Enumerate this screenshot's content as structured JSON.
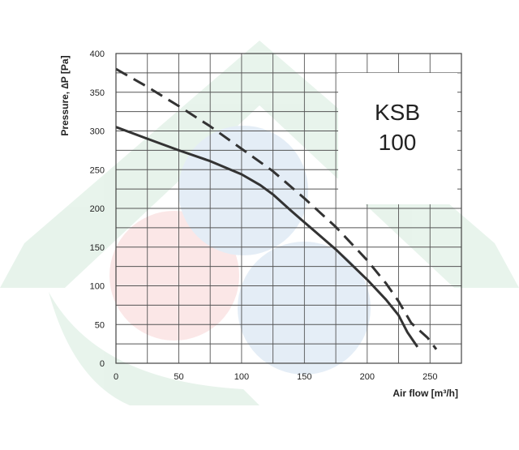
{
  "chart_data": {
    "type": "line",
    "title": "",
    "xlabel": "Air flow [m³/h]",
    "ylabel": "Pressure, ∆P [Pa]",
    "xlim": [
      0,
      275
    ],
    "ylim": [
      0,
      400
    ],
    "x_ticks": [
      0,
      50,
      100,
      150,
      200,
      250
    ],
    "y_ticks": [
      0,
      50,
      100,
      150,
      200,
      250,
      300,
      350,
      400
    ],
    "grid": true,
    "annotation": {
      "line1": "KSB",
      "line2": "100"
    },
    "series": [
      {
        "style": "solid",
        "color": "#333333",
        "points": [
          [
            0,
            305
          ],
          [
            25,
            290
          ],
          [
            50,
            275
          ],
          [
            75,
            261
          ],
          [
            100,
            244
          ],
          [
            115,
            230
          ],
          [
            125,
            218
          ],
          [
            140,
            196
          ],
          [
            150,
            182
          ],
          [
            175,
            147
          ],
          [
            200,
            108
          ],
          [
            215,
            82
          ],
          [
            225,
            62
          ],
          [
            232,
            40
          ],
          [
            240,
            21
          ]
        ]
      },
      {
        "style": "dashed",
        "color": "#333333",
        "points": [
          [
            0,
            380
          ],
          [
            25,
            357
          ],
          [
            50,
            332
          ],
          [
            75,
            306
          ],
          [
            100,
            277
          ],
          [
            125,
            248
          ],
          [
            150,
            213
          ],
          [
            175,
            176
          ],
          [
            200,
            133
          ],
          [
            215,
            103
          ],
          [
            225,
            80
          ],
          [
            235,
            52
          ],
          [
            248,
            33
          ],
          [
            255,
            18
          ]
        ]
      }
    ]
  }
}
